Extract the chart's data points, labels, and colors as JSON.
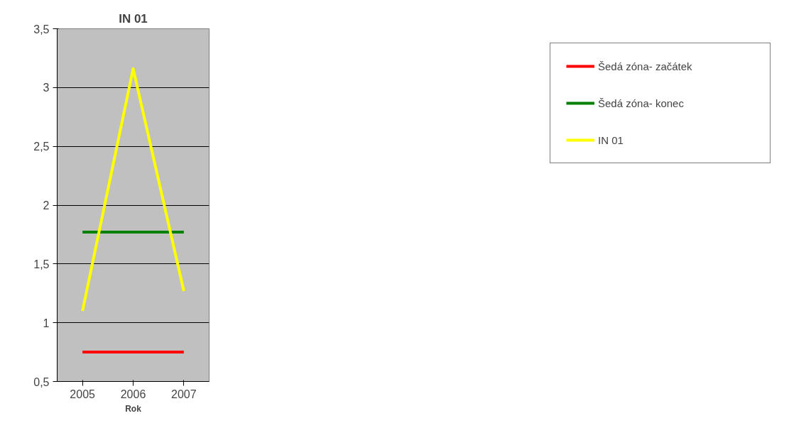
{
  "chart_data": {
    "type": "line",
    "title": "IN 01",
    "xlabel": "Rok",
    "categories": [
      "2005",
      "2006",
      "2007"
    ],
    "series": [
      {
        "name": "Šedá zóna- začátek",
        "color": "#ff0000",
        "values": [
          0.75,
          0.75,
          0.75
        ]
      },
      {
        "name": "Šedá zóna- konec",
        "color": "#008000",
        "values": [
          1.77,
          1.77,
          1.77
        ]
      },
      {
        "name": "IN 01",
        "color": "#ffff00",
        "values": [
          1.1,
          3.16,
          1.27
        ]
      }
    ],
    "ylim": [
      0.5,
      3.5
    ],
    "yticks": [
      {
        "value": 0.5,
        "label": "0,5"
      },
      1,
      {
        "value": 1.5,
        "label": "1,5"
      },
      2,
      {
        "value": 2.5,
        "label": "2,5"
      },
      3,
      {
        "value": 3.5,
        "label": "3,5"
      }
    ],
    "grid": "y",
    "legend": "right",
    "marker": "none",
    "line_style": "solid"
  }
}
